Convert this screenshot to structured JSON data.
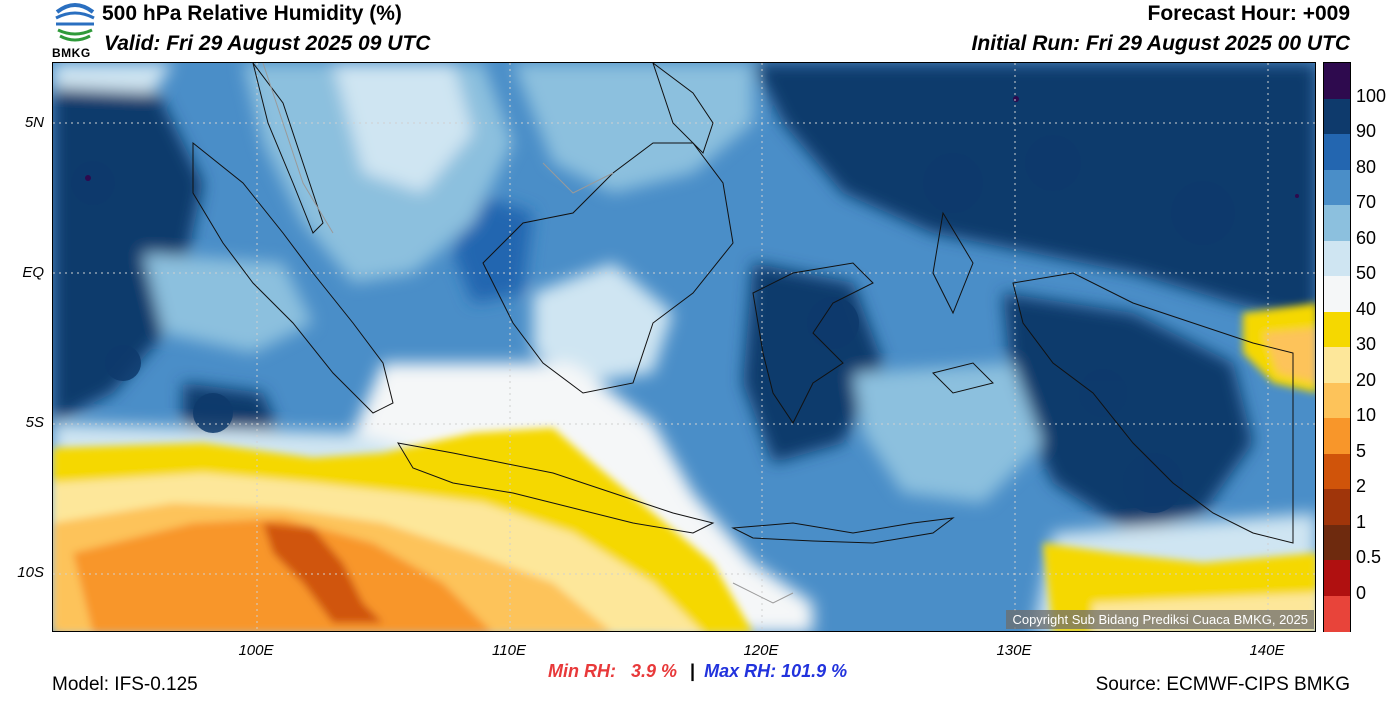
{
  "header": {
    "title": "500 hPa Relative Humidity (%)",
    "valid": "Valid: Fri 29 August 2025 09 UTC",
    "forecast_hour": "Forecast Hour: +009",
    "initial_run": "Initial Run: Fri 29 August 2025 00 UTC",
    "logo_text": "BMKG"
  },
  "map": {
    "lat_labels": [
      "5N",
      "EQ",
      "5S",
      "10S"
    ],
    "lon_labels": [
      "100E",
      "110E",
      "120E",
      "130E",
      "140E"
    ],
    "copyright": "Copyright Sub Bidang Prediksi Cuaca BMKG, 2025"
  },
  "colorbar": {
    "labels": [
      "100",
      "90",
      "80",
      "70",
      "60",
      "50",
      "40",
      "30",
      "20",
      "10",
      "5",
      "2",
      "1",
      "0.5",
      "0"
    ],
    "colors": [
      "#2e0a4e",
      "#0e3a6c",
      "#2366b0",
      "#4a8ec8",
      "#8cc0de",
      "#cfe5f2",
      "#f5f7f8",
      "#f5d800",
      "#fde79a",
      "#fdc35a",
      "#f8962a",
      "#d0540a",
      "#a0350a",
      "#6e2a0e",
      "#b01010",
      "#e8443a"
    ]
  },
  "stats": {
    "min_label": "Min RH:",
    "min_value": "3.9 %",
    "separator": "|",
    "max_label": "Max RH:",
    "max_value": "101.9 %"
  },
  "footer": {
    "model": "Model: IFS-0.125",
    "source": "Source: ECMWF-CIPS BMKG"
  }
}
